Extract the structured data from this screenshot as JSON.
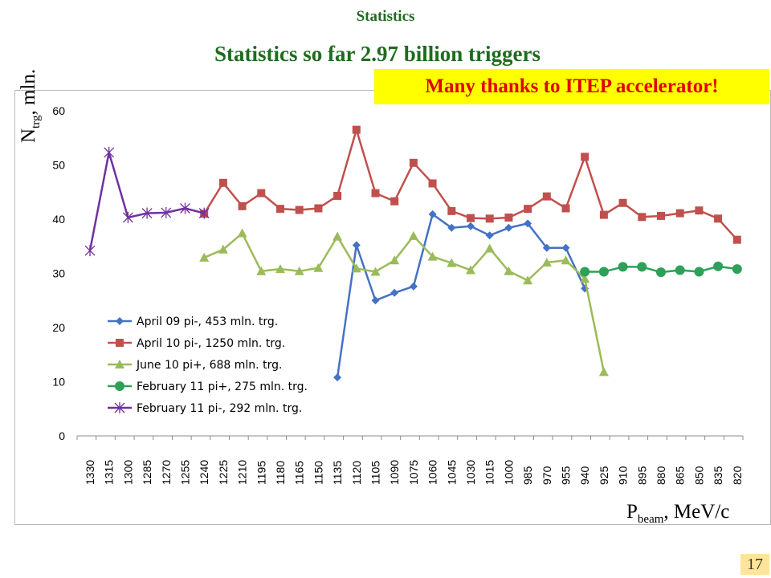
{
  "header": {
    "title": "Statistics"
  },
  "slide": {
    "title": "Statistics so far 2.97 billion triggers",
    "banner": "Many thanks to ITEP accelerator!",
    "page_number": "17"
  },
  "axis_labels": {
    "y_main": "N",
    "y_sub": "trg",
    "y_rest": ", mln.",
    "x_main": "P",
    "x_sub": "beam",
    "x_rest": ", MeV/c"
  },
  "chart_data": {
    "type": "line",
    "title": "",
    "xlabel": "Pbeam, MeV/c",
    "ylabel": "Ntrg, mln.",
    "ylim": [
      0,
      60
    ],
    "yticks": [
      0,
      10,
      20,
      30,
      40,
      50,
      60
    ],
    "grid": false,
    "legend_position": "bottom-left",
    "categories": [
      "1330",
      "1315",
      "1300",
      "1285",
      "1270",
      "1255",
      "1240",
      "1225",
      "1210",
      "1195",
      "1180",
      "1165",
      "1150",
      "1135",
      "1120",
      "1105",
      "1090",
      "1075",
      "1060",
      "1045",
      "1030",
      "1015",
      "1000",
      "985",
      "970",
      "955",
      "940",
      "925",
      "910",
      "895",
      "880",
      "865",
      "850",
      "835",
      "820"
    ],
    "series": [
      {
        "name": "April 09 pi-, 453 mln. trg.",
        "color": "#4472c4",
        "marker": "diamond",
        "values": [
          null,
          null,
          null,
          null,
          null,
          null,
          null,
          null,
          null,
          null,
          null,
          null,
          null,
          10.8,
          35.2,
          25.0,
          26.4,
          27.6,
          40.9,
          38.4,
          38.7,
          37.0,
          38.4,
          39.2,
          34.7,
          34.7,
          27.2,
          null,
          null,
          null,
          null,
          null,
          null,
          null,
          null
        ]
      },
      {
        "name": "April 10 pi-, 1250 mln. trg.",
        "color": "#c0504d",
        "marker": "square",
        "values": [
          null,
          null,
          null,
          null,
          null,
          null,
          41.0,
          46.7,
          42.4,
          44.8,
          41.9,
          41.7,
          42.0,
          44.3,
          56.5,
          44.8,
          43.3,
          50.4,
          46.6,
          41.5,
          40.2,
          40.1,
          40.3,
          41.9,
          44.2,
          42.0,
          51.5,
          40.8,
          43.0,
          40.4,
          40.6,
          41.1,
          41.6,
          40.1,
          36.2
        ]
      },
      {
        "name": "June 10 pi+, 688 mln. trg.",
        "color": "#9bbb59",
        "marker": "triangle",
        "values": [
          null,
          null,
          null,
          null,
          null,
          null,
          32.9,
          34.4,
          37.4,
          30.4,
          30.8,
          30.4,
          31.0,
          36.8,
          30.9,
          30.3,
          32.4,
          36.9,
          33.1,
          31.9,
          30.6,
          34.6,
          30.4,
          28.7,
          32.0,
          32.4,
          29.0,
          11.8,
          null,
          null,
          null,
          null,
          null,
          null,
          null
        ]
      },
      {
        "name": "February 11 pi+, 275 mln. trg.",
        "color": "#2ea05a",
        "marker": "circle",
        "values": [
          null,
          null,
          null,
          null,
          null,
          null,
          null,
          null,
          null,
          null,
          null,
          null,
          null,
          null,
          null,
          null,
          null,
          null,
          null,
          null,
          null,
          null,
          null,
          null,
          null,
          null,
          30.3,
          30.3,
          31.2,
          31.2,
          30.2,
          30.6,
          30.3,
          31.3,
          30.8
        ]
      },
      {
        "name": "February 11 pi-, 292 mln. trg.",
        "color": "#7030a0",
        "marker": "star",
        "values": [
          34.2,
          52.3,
          40.3,
          41.1,
          41.2,
          42.0,
          41.1,
          null,
          null,
          null,
          null,
          null,
          null,
          null,
          null,
          null,
          null,
          null,
          null,
          null,
          null,
          null,
          null,
          null,
          null,
          null,
          null,
          null,
          null,
          null,
          null,
          null,
          null,
          null,
          null
        ]
      }
    ]
  }
}
